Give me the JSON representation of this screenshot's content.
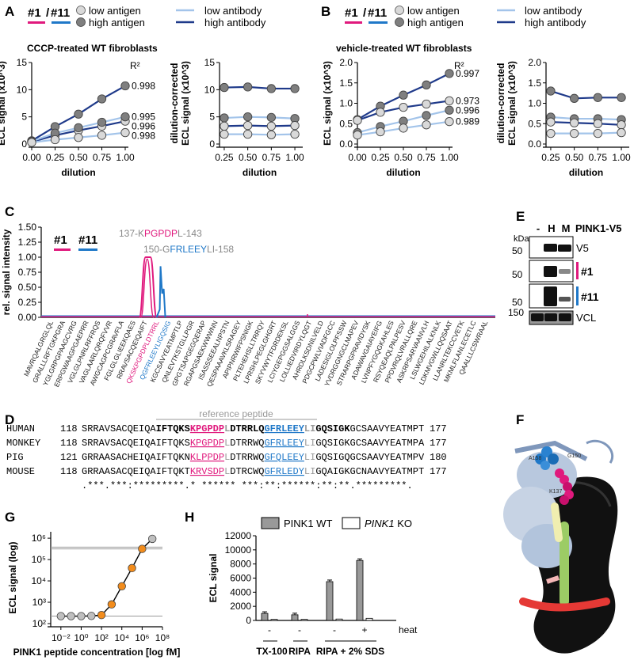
{
  "panels": {
    "A": "A",
    "B": "B",
    "C": "C",
    "D": "D",
    "E": "E",
    "F": "F",
    "G": "G",
    "H": "H"
  },
  "legend_ab": {
    "clone1": "#1",
    "slash": "/",
    "clone11": "#11",
    "low_antigen": "low antigen",
    "high_antigen": "high antigen",
    "low_antibody": "low antibody",
    "high_antibody": "high antibody"
  },
  "colors": {
    "clone1": "#e0197d",
    "clone11": "#1f78c8",
    "low_antibody": "#a3c4ea",
    "high_antibody": "#1f3a8a",
    "low_antigen_fill": "#d9d9d9",
    "high_antigen_fill": "#7f7f7f",
    "orange": "#f28c1c",
    "grey_point": "#bfbfbf",
    "ref_peptide": "#999999"
  },
  "chart_data": [
    {
      "id": "A1",
      "type": "line",
      "title": "CCCP-treated WT fibroblasts",
      "xlabel": "dilution",
      "ylabel": "ECL signal (x10^3)",
      "xlim": [
        0,
        1
      ],
      "ylim": [
        0,
        15
      ],
      "xticks": [
        "0.00",
        "0.25",
        "0.50",
        "0.75",
        "1.00"
      ],
      "yticks": [
        "0",
        "5",
        "10",
        "15"
      ],
      "r2_label": "R²",
      "x": [
        0,
        0.25,
        0.5,
        0.75,
        1.0
      ],
      "series": [
        {
          "antibody": "high",
          "antigen": "high",
          "values": [
            0.6,
            3.2,
            5.5,
            8.3,
            10.7
          ],
          "r2": "0.998"
        },
        {
          "antibody": "high",
          "antigen": "low",
          "values": [
            0.4,
            1.6,
            2.5,
            3.3,
            4.2
          ],
          "r2": "0.996"
        },
        {
          "antibody": "low",
          "antigen": "high",
          "values": [
            0.5,
            2.0,
            3.0,
            4.0,
            5.0
          ],
          "r2": "0.995"
        },
        {
          "antibody": "low",
          "antigen": "low",
          "values": [
            0.3,
            0.8,
            1.2,
            1.6,
            2.1
          ],
          "r2": "0.998"
        }
      ]
    },
    {
      "id": "A2",
      "type": "line",
      "title": "",
      "xlabel": "dilution",
      "ylabel": "dilution-corrected ECL signal (x10^3)",
      "ylabel_line1": "dilution-corrected",
      "ylabel_line2": "ECL signal (x10^3)",
      "xlim": [
        0.2,
        1.05
      ],
      "ylim": [
        0,
        15
      ],
      "xticks": [
        "0.25",
        "0.50",
        "0.75",
        "1.00"
      ],
      "yticks": [
        "0",
        "5",
        "10",
        "15"
      ],
      "x": [
        0.25,
        0.5,
        0.75,
        1.0
      ],
      "series": [
        {
          "antibody": "high",
          "antigen": "high",
          "values": [
            10.4,
            10.5,
            10.2,
            10.2
          ]
        },
        {
          "antibody": "low",
          "antigen": "high",
          "values": [
            4.8,
            5.0,
            4.9,
            4.7
          ]
        },
        {
          "antibody": "high",
          "antigen": "low",
          "values": [
            3.3,
            3.4,
            3.3,
            3.4
          ]
        },
        {
          "antibody": "low",
          "antigen": "low",
          "values": [
            1.8,
            1.8,
            1.7,
            1.8
          ]
        }
      ]
    },
    {
      "id": "B1",
      "type": "line",
      "title": "vehicle-treated WT fibroblasts",
      "xlabel": "dilution",
      "ylabel": "ECL signal (x10^3)",
      "xlim": [
        0,
        1
      ],
      "ylim": [
        0,
        2.0
      ],
      "xticks": [
        "0.00",
        "0.25",
        "0.50",
        "0.75",
        "1.00"
      ],
      "yticks": [
        "0.0",
        "0.5",
        "1.0",
        "1.5",
        "2.0"
      ],
      "r2_label": "R²",
      "x": [
        0,
        0.25,
        0.5,
        0.75,
        1.0
      ],
      "series": [
        {
          "antibody": "high",
          "antigen": "high",
          "values": [
            0.6,
            0.93,
            1.2,
            1.45,
            1.73
          ],
          "r2": "0.997"
        },
        {
          "antibody": "high",
          "antigen": "low",
          "values": [
            0.58,
            0.78,
            0.9,
            0.98,
            1.06
          ],
          "r2": "0.973"
        },
        {
          "antibody": "low",
          "antigen": "high",
          "values": [
            0.28,
            0.43,
            0.56,
            0.7,
            0.83
          ],
          "r2": "0.996"
        },
        {
          "antibody": "low",
          "antigen": "low",
          "values": [
            0.22,
            0.3,
            0.39,
            0.47,
            0.55
          ],
          "r2": "0.989"
        }
      ]
    },
    {
      "id": "B2",
      "type": "line",
      "title": "",
      "xlabel": "dilution",
      "ylabel": "dilution-corrected ECL signal (x10^3)",
      "ylabel_line1": "dilution-corrected",
      "ylabel_line2": "ECL signal (x10^3)",
      "xlim": [
        0.2,
        1.05
      ],
      "ylim": [
        0,
        2.0
      ],
      "xticks": [
        "0.25",
        "0.50",
        "0.75",
        "1.00"
      ],
      "yticks": [
        "0.0",
        "0.5",
        "1.0",
        "1.5",
        "2.0"
      ],
      "x": [
        0.25,
        0.5,
        0.75,
        1.0
      ],
      "series": [
        {
          "antibody": "high",
          "antigen": "high",
          "values": [
            1.3,
            1.12,
            1.14,
            1.14
          ]
        },
        {
          "antibody": "low",
          "antigen": "high",
          "values": [
            0.66,
            0.62,
            0.62,
            0.6
          ]
        },
        {
          "antibody": "high",
          "antigen": "low",
          "values": [
            0.54,
            0.52,
            0.5,
            0.47
          ]
        },
        {
          "antibody": "low",
          "antigen": "low",
          "values": [
            0.26,
            0.26,
            0.26,
            0.28
          ]
        }
      ]
    },
    {
      "id": "C",
      "type": "line",
      "title": "",
      "ylabel": "rel. signal intensity",
      "ylim": [
        0,
        1.5
      ],
      "yticks": [
        "0.00",
        "0.25",
        "0.50",
        "0.75",
        "1.00",
        "1.25",
        "1.50"
      ],
      "legend": [
        "#1",
        "#11"
      ],
      "annotations": {
        "a1_pre": "137-K",
        "a1_core": "PGPDP",
        "a1_post": "L-143",
        "a2_pre": "150-G",
        "a2_core": "FRLEEY",
        "a2_post": "LI-158"
      },
      "peptides": [
        "MAVRQALGRGLQL",
        "GRALLLRFTGKPGRA",
        "YGLGRPGPAAGCVRG",
        "ERPGWAAGPGAEPRR",
        "VGLGLPNRLRFFRQS",
        "VAGLAARLQRQFVVR",
        "AWGCAGPCGRAVFLA",
        "FGLGLGLIEEKQAES",
        "RRAVSACQEIQAIFT",
        "QKSKPGPDPLDTRRL",
        "QGFRLEEYLIGQSIG",
        "KGCSAVYEATMPTLP",
        "QNLEVTKSTGLLPGR",
        "GPGTSAPGEGQERAP",
        "RGAPGSAEKWWWNN",
        "ISASSSEEALNPSTN",
        "QESPAAAVKLSRAGEY",
        "APIPNRWIFPSNIGK",
        "PLTEHEHSLLTRRQY",
        "LPRSHLPEGLGHGRT",
        "SKYVWYTFDRDEKSL",
        "LCIYGEPGGSALGGS",
        "LOLLIEDVIRDYLQGT",
        "AHRDLKSDNILVELD",
        "PDGCPWLVIADFGCC",
        "LADESIGLOLPFSSW",
        "YVDRGGNGCLMAPEV",
        "STRARPGPRAVIDYSK",
        "ADAWAVGAIAYEIFG",
        "LVNPFYGQGKAHLES",
        "RSYQEAQLPALPESV",
        "PPDVRQLVRALLQRE",
        "ASKRPSARVAANVLH",
        "LSLWGEHILALKNLK",
        "LDKMVGWLLQQSAAT",
        "LLANRLTEKCCVETK",
        "MKMLFLANLECETLC",
        "QAALLLCSWRAAL"
      ],
      "series": [
        {
          "name": "#1",
          "peptide_index": 9,
          "value": 1.0
        },
        {
          "name": "#11",
          "peptide_index": 10,
          "value": 0.85
        }
      ]
    },
    {
      "id": "G",
      "type": "scatter",
      "xlabel": "PINK1 peptide concentration [log fM]",
      "ylabel": "ECL signal (log)",
      "xticks": [
        "10⁻²",
        "10⁰",
        "10²",
        "10⁴",
        "10⁶",
        "10⁸"
      ],
      "yticks": [
        "10²",
        "10³",
        "10⁴",
        "10⁵",
        "10⁶"
      ],
      "xlim_log10": [
        -3,
        8
      ],
      "ylim_log10": [
        2,
        6.3
      ],
      "baseline_log10": 2.35,
      "upper_lines_log10": [
        5.5,
        5.58
      ],
      "points": [
        {
          "x_log10": -2,
          "y_log10": 2.35,
          "kind": "grey"
        },
        {
          "x_log10": -1,
          "y_log10": 2.35,
          "kind": "grey"
        },
        {
          "x_log10": 0,
          "y_log10": 2.35,
          "kind": "grey"
        },
        {
          "x_log10": 1,
          "y_log10": 2.36,
          "kind": "grey"
        },
        {
          "x_log10": 2,
          "y_log10": 2.4,
          "kind": "orange"
        },
        {
          "x_log10": 3,
          "y_log10": 2.9,
          "kind": "orange"
        },
        {
          "x_log10": 4,
          "y_log10": 3.75,
          "kind": "orange"
        },
        {
          "x_log10": 5,
          "y_log10": 4.6,
          "kind": "orange"
        },
        {
          "x_log10": 6,
          "y_log10": 5.5,
          "kind": "orange"
        },
        {
          "x_log10": 7,
          "y_log10": 5.97,
          "kind": "grey"
        }
      ]
    },
    {
      "id": "H",
      "type": "bar",
      "ylabel": "ECL signal",
      "ylim": [
        0,
        12000
      ],
      "yticks": [
        "0",
        "2000",
        "4000",
        "6000",
        "8000",
        "10000",
        "12000"
      ],
      "legend": [
        "PINK1 WT",
        "PINK1 KO"
      ],
      "legend_ko_gene": "PINK1",
      "legend_ko_suffix": " KO",
      "heat_label": "heat",
      "heat_values": [
        "-",
        "-",
        "-",
        "+"
      ],
      "groups": [
        "TX-100",
        "RIPA",
        "RIPA + 2% SDS"
      ],
      "bars": [
        {
          "condition": "TX-100 heat -",
          "wt": 1000,
          "ko": 150
        },
        {
          "condition": "RIPA heat -",
          "wt": 800,
          "ko": 150
        },
        {
          "condition": "RIPA + 2% SDS heat -",
          "wt": 5500,
          "ko": 200
        },
        {
          "condition": "RIPA + 2% SDS heat +",
          "wt": 8500,
          "ko": 300
        }
      ]
    }
  ],
  "panel_e": {
    "lanes": [
      "-",
      "H",
      "M"
    ],
    "title": "PINK1-V5",
    "kda": "kDa",
    "rows": [
      {
        "marker": "50",
        "label": "V5"
      },
      {
        "marker": "50",
        "label": "#1"
      },
      {
        "marker": "50",
        "label": "#11"
      },
      {
        "marker": "150",
        "label": "VCL"
      }
    ]
  },
  "panel_d": {
    "reference": "reference peptide",
    "rows": [
      {
        "species": "HUMAN",
        "start": "118",
        "s1": "SRRAVSACQEIQA",
        "s2": "IFTQKS",
        "s3": "KPGPDP",
        "s4": "L",
        "s5": "DTRRLQ",
        "s6": "GFRLEEY",
        "s7": "LI",
        "s8": "GQSIGK",
        "s9": "GCSAAVYEATMPT",
        "end": "177"
      },
      {
        "species": "MONKEY",
        "start": "118",
        "s1": "SRRAVSACQEIQA",
        "s2": "IFTQKS",
        "s3": "KPGPDP",
        "s4": "L",
        "s5": "DTRRWQ",
        "s6": "GFRLEEY",
        "s7": "LI",
        "s8": "GQSIGK",
        "s9": "GCSAAVYEATMPA",
        "end": "177"
      },
      {
        "species": "PIG",
        "start": "121",
        "s1": "GRRAASACHEIQA",
        "s2": "IFTQKN",
        "s3": "KLPPDP",
        "s4": "L",
        "s5": "DTRRWQ",
        "s6": "GFQLEEY",
        "s7": "LI",
        "s8": "GQSIGQ",
        "s9": "GCSAAVYEATMPV",
        "end": "180"
      },
      {
        "species": "MOUSE",
        "start": "118",
        "s1": "GRRAASACQEIQA",
        "s2": "IFTQKT",
        "s3": "KRVSDP",
        "s4": "L",
        "s5": "DTRCWQ",
        "s6": "GFRLEDY",
        "s7": "LI",
        "s8": "GQAIGK",
        "s9": "GCNAAVYEATMPT",
        "end": "177"
      }
    ],
    "conservation": ".***.***:*********.*   ******  ***:**:******:**:**.*********."
  },
  "panel_f": {
    "labels": [
      "A158",
      "G150",
      "K137"
    ]
  }
}
